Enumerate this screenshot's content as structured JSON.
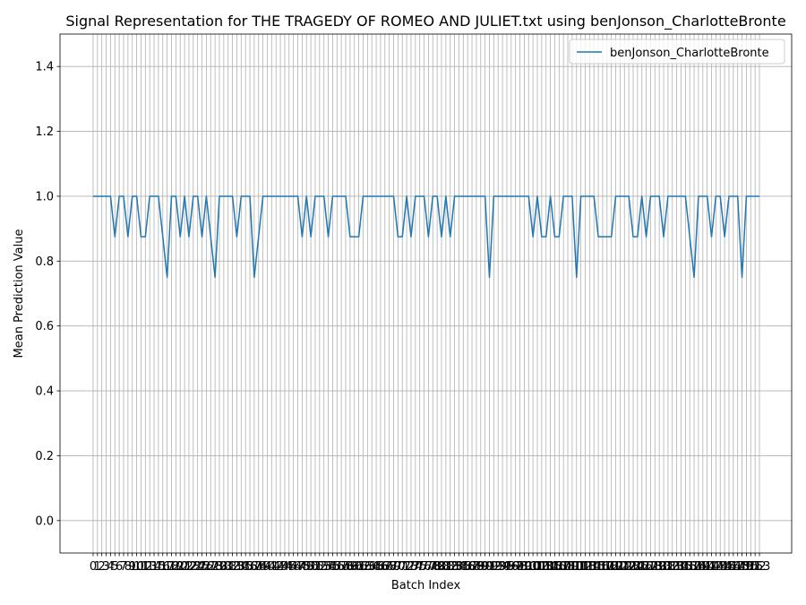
{
  "chart_data": {
    "type": "line",
    "title": "Signal Representation for THE TRAGEDY OF ROMEO AND JULIET.txt using benJonson_CharlotteBronte",
    "xlabel": "Batch Index",
    "ylabel": "Mean Prediction Value",
    "x": [
      0,
      1,
      2,
      3,
      4,
      5,
      6,
      7,
      8,
      9,
      10,
      11,
      12,
      13,
      14,
      15,
      16,
      17,
      18,
      19,
      20,
      21,
      22,
      23,
      24,
      25,
      26,
      27,
      28,
      29,
      30,
      31,
      32,
      33,
      34,
      35,
      36,
      37,
      38,
      39,
      40,
      41,
      42,
      43,
      44,
      45,
      46,
      47,
      48,
      49,
      50,
      51,
      52,
      53,
      54,
      55,
      56,
      57,
      58,
      59,
      60,
      61,
      62,
      63,
      64,
      65,
      66,
      67,
      68,
      69,
      70,
      71,
      72,
      73,
      74,
      75,
      76,
      77,
      78,
      79,
      80,
      81,
      82,
      83,
      84,
      85,
      86,
      87,
      88,
      89,
      90,
      91,
      92,
      93,
      94,
      95,
      96,
      97,
      98,
      99,
      100,
      101,
      102,
      103,
      104,
      105,
      106,
      107,
      108,
      109,
      110,
      111,
      112,
      113,
      114,
      115,
      116,
      117,
      118,
      119,
      120,
      121,
      122,
      123,
      124,
      125,
      126,
      127,
      128,
      129,
      130,
      131,
      132,
      133,
      134,
      135,
      136,
      137,
      138,
      139,
      140,
      141,
      142,
      143,
      144,
      145,
      146,
      147,
      148,
      149,
      150,
      151,
      152,
      153
    ],
    "series": [
      {
        "name": "benJonson_CharlotteBronte",
        "color": "#1f77b4",
        "values": [
          1,
          1,
          1,
          1,
          1,
          0.875,
          1,
          1,
          0.875,
          1,
          1,
          0.875,
          0.875,
          1,
          1,
          1,
          0.875,
          0.75,
          1,
          1,
          0.875,
          1,
          0.875,
          1,
          1,
          0.875,
          1,
          0.875,
          0.75,
          1,
          1,
          1,
          1,
          0.875,
          1,
          1,
          1,
          0.75,
          0.875,
          1,
          1,
          1,
          1,
          1,
          1,
          1,
          1,
          1,
          0.875,
          1,
          0.875,
          1,
          1,
          1,
          0.875,
          1,
          1,
          1,
          1,
          0.875,
          0.875,
          0.875,
          1,
          1,
          1,
          1,
          1,
          1,
          1,
          1,
          0.875,
          0.875,
          1,
          0.875,
          1,
          1,
          1,
          0.875,
          1,
          1,
          0.875,
          1,
          0.875,
          1,
          1,
          1,
          1,
          1,
          1,
          1,
          1,
          0.75,
          1,
          1,
          1,
          1,
          1,
          1,
          1,
          1,
          1,
          0.875,
          1,
          0.875,
          0.875,
          1,
          0.875,
          0.875,
          1,
          1,
          1,
          0.75,
          1,
          1,
          1,
          1,
          0.875,
          0.875,
          0.875,
          0.875,
          1,
          1,
          1,
          1,
          0.875,
          0.875,
          1,
          0.875,
          1,
          1,
          1,
          0.875,
          1,
          1,
          1,
          1,
          1,
          0.875,
          0.75,
          1,
          1,
          1,
          0.875,
          1,
          1,
          0.875,
          1,
          1,
          1,
          0.75,
          1,
          1,
          1,
          1
        ]
      }
    ],
    "xlim": [
      -7.6,
      160.4
    ],
    "ylim": [
      -0.1,
      1.5
    ],
    "xticks": [
      0,
      1,
      2,
      3,
      4,
      5,
      6,
      7,
      8,
      9,
      10,
      11,
      12,
      13,
      14,
      15,
      16,
      17,
      18,
      19,
      20,
      21,
      22,
      23,
      24,
      25,
      26,
      27,
      28,
      29,
      30,
      31,
      32,
      33,
      34,
      35,
      36,
      37,
      38,
      39,
      40,
      41,
      42,
      43,
      44,
      45,
      46,
      47,
      48,
      49,
      50,
      51,
      52,
      53,
      54,
      55,
      56,
      57,
      58,
      59,
      60,
      61,
      62,
      63,
      64,
      65,
      66,
      67,
      68,
      69,
      70,
      71,
      72,
      73,
      74,
      75,
      76,
      77,
      78,
      79,
      80,
      81,
      82,
      83,
      84,
      85,
      86,
      87,
      88,
      89,
      90,
      91,
      92,
      93,
      94,
      95,
      96,
      97,
      98,
      99,
      100,
      101,
      102,
      103,
      104,
      105,
      106,
      107,
      108,
      109,
      110,
      111,
      112,
      113,
      114,
      115,
      116,
      117,
      118,
      119,
      120,
      121,
      122,
      123,
      124,
      125,
      126,
      127,
      128,
      129,
      130,
      131,
      132,
      133,
      134,
      135,
      136,
      137,
      138,
      139,
      140,
      141,
      142,
      143,
      144,
      145,
      146,
      147,
      148,
      149,
      150,
      151,
      152,
      153
    ],
    "yticks": [
      {
        "value": 0,
        "label": "0.0"
      },
      {
        "value": 0.2,
        "label": "0.2"
      },
      {
        "value": 0.4,
        "label": "0.4"
      },
      {
        "value": 0.6,
        "label": "0.6"
      },
      {
        "value": 0.8,
        "label": "0.8"
      },
      {
        "value": 1,
        "label": "1.0"
      },
      {
        "value": 1.2,
        "label": "1.2"
      },
      {
        "value": 1.4,
        "label": "1.4"
      }
    ],
    "grid": true,
    "legend": "upper right"
  }
}
